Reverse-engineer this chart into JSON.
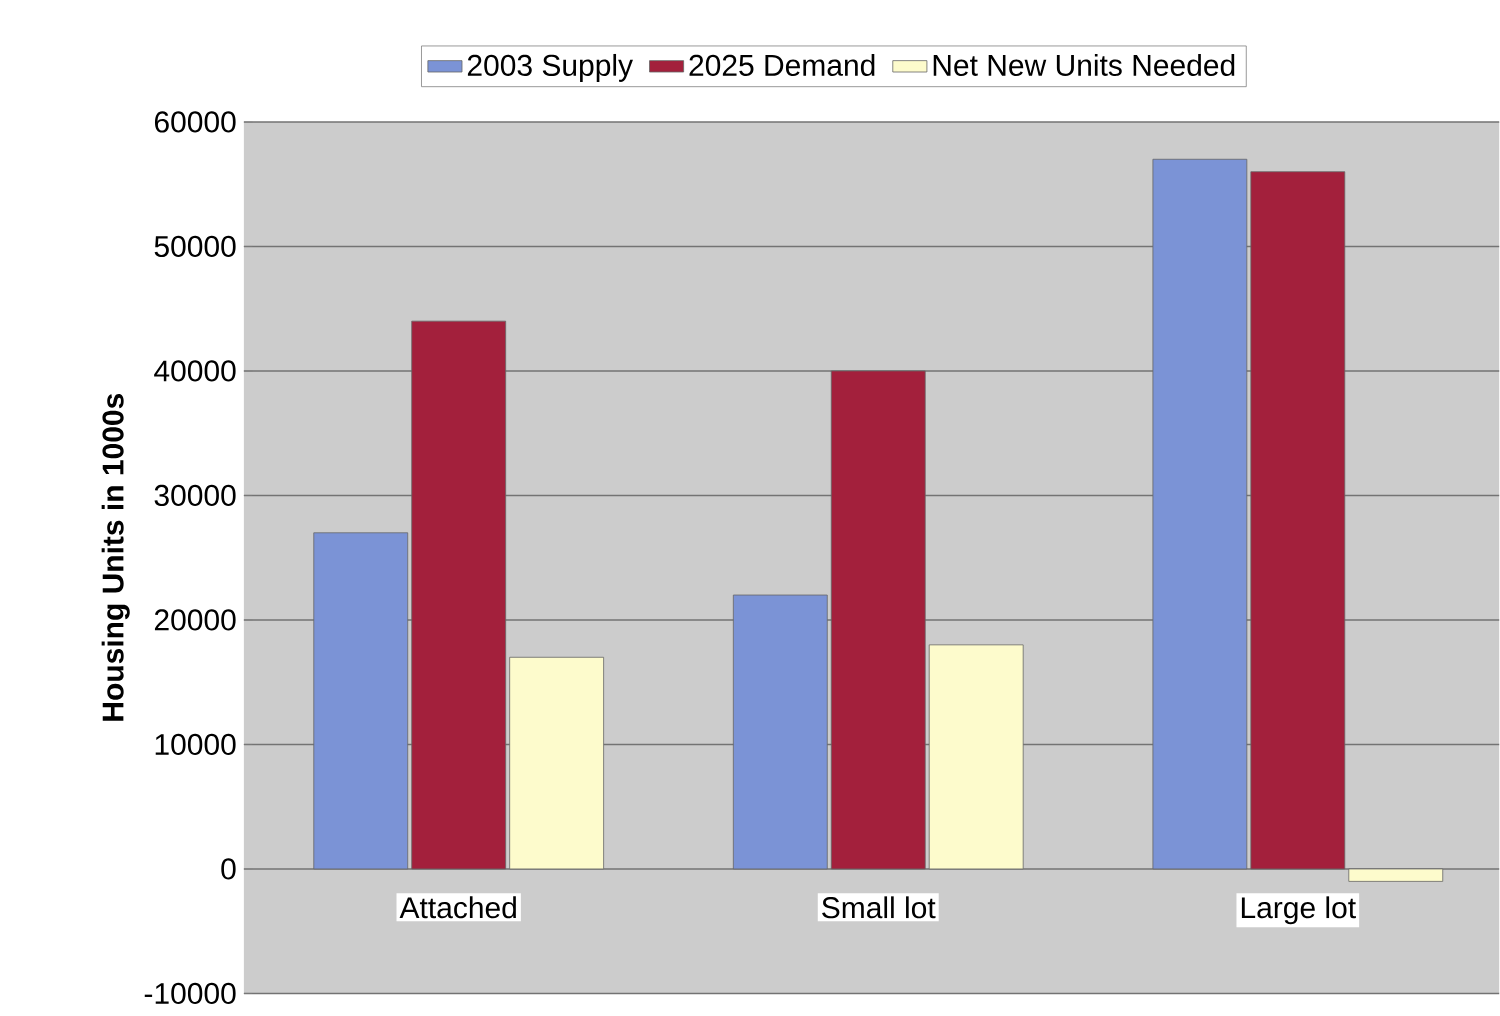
{
  "chart_data": {
    "type": "bar",
    "ylabel": "Housing Units in 1000s",
    "categories": [
      "Attached",
      "Small lot",
      "Large lot"
    ],
    "series": [
      {
        "name": "2003 Supply",
        "color": "#7b93d6",
        "values": [
          27000,
          22000,
          57000
        ]
      },
      {
        "name": "2025 Demand",
        "color": "#a3203c",
        "values": [
          44000,
          40000,
          56000
        ]
      },
      {
        "name": "Net New Units Needed",
        "color": "#fdfbcc",
        "values": [
          17000,
          18000,
          -1000
        ]
      }
    ],
    "ylim": [
      -10000,
      60000
    ],
    "yticks": [
      -10000,
      0,
      10000,
      20000,
      30000,
      40000,
      50000,
      60000
    ],
    "grid": "y",
    "legend": "top"
  }
}
